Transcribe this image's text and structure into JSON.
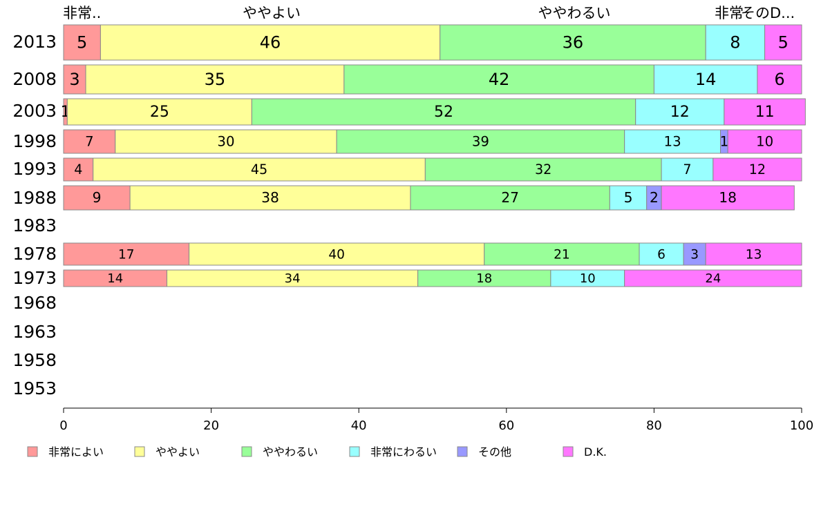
{
  "chart_data": {
    "type": "bar",
    "orientation": "horizontal",
    "stacked": true,
    "xlim": [
      0,
      100
    ],
    "x_ticks": [
      "0",
      "20",
      "40",
      "60",
      "80",
      "100"
    ],
    "categories": [
      "2013",
      "2008",
      "2003",
      "1998",
      "1993",
      "1988",
      "1983",
      "1978",
      "1973",
      "1968",
      "1963",
      "1958",
      "1953"
    ],
    "top_labels": [
      "非常..",
      "ややよい",
      "ややわるい",
      "非常",
      "そのD..."
    ],
    "legend_position": "bottom-left",
    "series": [
      {
        "name": "非常によい",
        "color": "#ff9999",
        "values": [
          5,
          3,
          0.5,
          7,
          4,
          9,
          null,
          17,
          14,
          null,
          null,
          null,
          null
        ],
        "labels": [
          "5",
          "3",
          "1",
          "7",
          "4",
          "9",
          "",
          "17",
          "14",
          "",
          "",
          "",
          ""
        ]
      },
      {
        "name": "ややよい",
        "color": "#ffff99",
        "values": [
          46,
          35,
          25,
          30,
          45,
          38,
          null,
          40,
          34,
          null,
          null,
          null,
          null
        ],
        "labels": [
          "46",
          "35",
          "25",
          "30",
          "45",
          "38",
          "",
          "40",
          "34",
          "",
          "",
          "",
          ""
        ]
      },
      {
        "name": "ややわるい",
        "color": "#99ff99",
        "values": [
          36,
          42,
          52,
          39,
          32,
          27,
          null,
          21,
          18,
          null,
          null,
          null,
          null
        ],
        "labels": [
          "36",
          "42",
          "52",
          "39",
          "32",
          "27",
          "",
          "21",
          "18",
          "",
          "",
          "",
          ""
        ]
      },
      {
        "name": "非常にわるい",
        "color": "#99ffff",
        "values": [
          8,
          14,
          12,
          13,
          7,
          5,
          null,
          6,
          10,
          null,
          null,
          null,
          null
        ],
        "labels": [
          "8",
          "14",
          "12",
          "13",
          "7",
          "5",
          "",
          "6",
          "10",
          "",
          "",
          "",
          ""
        ]
      },
      {
        "name": "その他",
        "color": "#9999ff",
        "values": [
          0,
          0,
          0,
          1,
          0,
          2,
          null,
          3,
          0,
          null,
          null,
          null,
          null
        ],
        "labels": [
          "",
          "",
          "",
          "1",
          "",
          "2",
          "",
          "3",
          "",
          "",
          "",
          "",
          ""
        ]
      },
      {
        "name": "D.K.",
        "color": "#ff77ff",
        "values": [
          5,
          6,
          11,
          10,
          12,
          18,
          null,
          13,
          24,
          null,
          null,
          null,
          null
        ],
        "labels": [
          "5",
          "6",
          "11",
          "10",
          "12",
          "18",
          "",
          "13",
          "24",
          "",
          "",
          "",
          ""
        ]
      }
    ]
  }
}
